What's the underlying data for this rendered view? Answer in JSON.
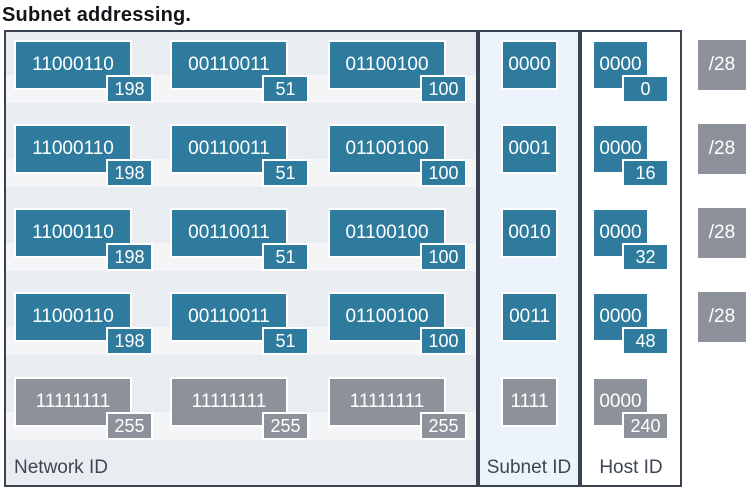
{
  "title": "Subnet addressing.",
  "labels": {
    "network": "Network ID",
    "subnet": "Subnet ID",
    "host": "Host ID"
  },
  "colors": {
    "teal": "#2e7b9d",
    "gray": "#8d929a",
    "panel_border": "#3a424f",
    "network_bg": "#e9edf1",
    "subnet_bg": "#ecf3fa",
    "host_bg": "#ffffff",
    "text_on_box": "#ffffff",
    "label_text": "#3e4654",
    "title_text": "#121418"
  },
  "rows": [
    {
      "variant": "teal",
      "octets": [
        {
          "bits": "11000110",
          "dec": "198"
        },
        {
          "bits": "00110011",
          "dec": "51"
        },
        {
          "bits": "01100100",
          "dec": "100"
        }
      ],
      "subnet_bits": "0000",
      "host": {
        "bits": "0000",
        "dec": "0"
      },
      "prefix": "/28"
    },
    {
      "variant": "teal",
      "octets": [
        {
          "bits": "11000110",
          "dec": "198"
        },
        {
          "bits": "00110011",
          "dec": "51"
        },
        {
          "bits": "01100100",
          "dec": "100"
        }
      ],
      "subnet_bits": "0001",
      "host": {
        "bits": "0000",
        "dec": "16"
      },
      "prefix": "/28"
    },
    {
      "variant": "teal",
      "octets": [
        {
          "bits": "11000110",
          "dec": "198"
        },
        {
          "bits": "00110011",
          "dec": "51"
        },
        {
          "bits": "01100100",
          "dec": "100"
        }
      ],
      "subnet_bits": "0010",
      "host": {
        "bits": "0000",
        "dec": "32"
      },
      "prefix": "/28"
    },
    {
      "variant": "teal",
      "octets": [
        {
          "bits": "11000110",
          "dec": "198"
        },
        {
          "bits": "00110011",
          "dec": "51"
        },
        {
          "bits": "01100100",
          "dec": "100"
        }
      ],
      "subnet_bits": "0011",
      "host": {
        "bits": "0000",
        "dec": "48"
      },
      "prefix": "/28"
    },
    {
      "variant": "gray",
      "octets": [
        {
          "bits": "11111111",
          "dec": "255"
        },
        {
          "bits": "11111111",
          "dec": "255"
        },
        {
          "bits": "11111111",
          "dec": "255"
        }
      ],
      "subnet_bits": "1111",
      "host": {
        "bits": "0000",
        "dec": "240"
      },
      "prefix": null
    }
  ]
}
